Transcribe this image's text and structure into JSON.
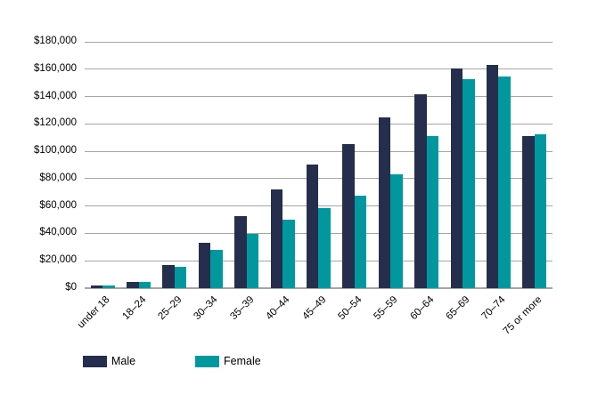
{
  "chart_data": {
    "type": "bar",
    "title": "",
    "categories": [
      "under 18",
      "18–24",
      "25–29",
      "30–34",
      "35–39",
      "40–44",
      "45–49",
      "50–54",
      "55–59",
      "60–64",
      "65–69",
      "70–74",
      "75 or more"
    ],
    "series": [
      {
        "name": "Male",
        "color": "#252e4d",
        "values": [
          1500,
          4000,
          16500,
          33000,
          52000,
          72000,
          90000,
          105000,
          124500,
          141500,
          160000,
          163000,
          111000
        ]
      },
      {
        "name": "Female",
        "color": "#00989f",
        "values": [
          1500,
          4000,
          15000,
          27500,
          39500,
          50000,
          58000,
          67000,
          83000,
          111000,
          152500,
          154500,
          112000
        ]
      }
    ],
    "y_ticks": [
      "$0",
      "$20,000",
      "$40,000",
      "$60,000",
      "$80,000",
      "$100,000",
      "$120,000",
      "$140,000",
      "$160,000",
      "$180,000"
    ],
    "ylim": [
      0,
      180000
    ],
    "y_step": 20000,
    "xlabel": "",
    "ylabel": "",
    "grid": true,
    "legend_position": "bottom"
  },
  "colors": {
    "gridline": "#a6a6a6",
    "axis_line": "#a6a6a6",
    "text": "#000000",
    "background": "#ffffff"
  }
}
